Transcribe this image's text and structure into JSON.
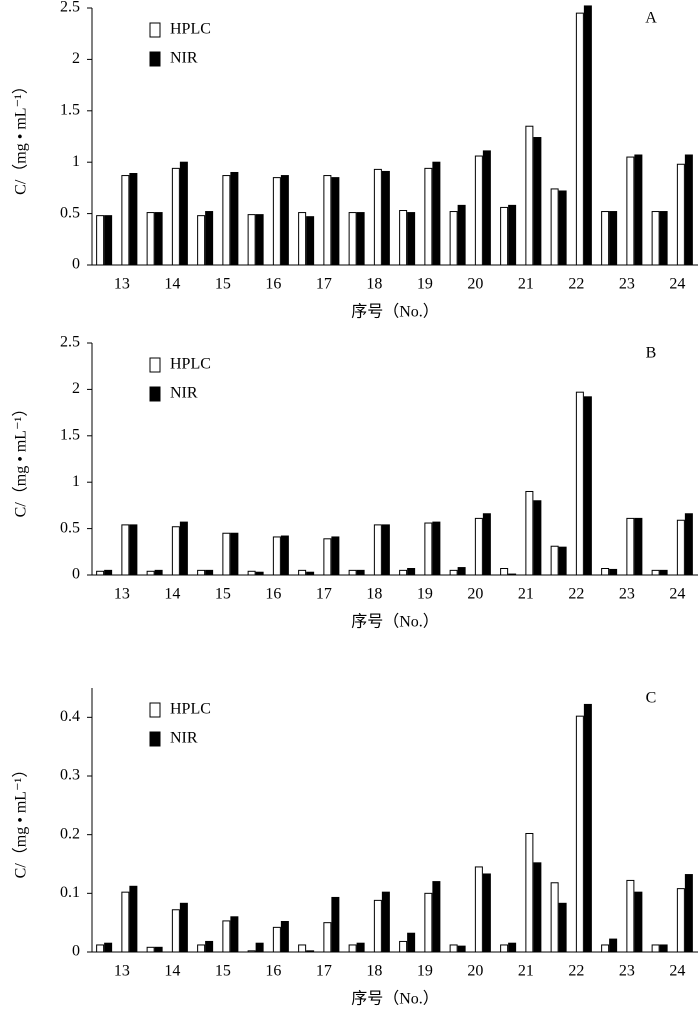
{
  "chart_data": [
    {
      "type": "bar",
      "annotation": "A",
      "xlabel": "序号（No.）",
      "ylabel": "C/（mg • mL⁻¹）",
      "categories": [
        null,
        "13",
        null,
        "14",
        null,
        "15",
        null,
        "16",
        null,
        "17",
        null,
        "18",
        null,
        "19",
        null,
        "20",
        null,
        "21",
        null,
        "22",
        null,
        "23",
        null,
        "24"
      ],
      "series": [
        {
          "name": "HPLC",
          "color": "#ffffff",
          "values": [
            0.48,
            0.87,
            0.51,
            0.94,
            0.48,
            0.87,
            0.49,
            0.85,
            0.51,
            0.87,
            0.51,
            0.93,
            0.53,
            0.94,
            0.52,
            1.06,
            0.56,
            1.35,
            0.74,
            2.45,
            0.52,
            1.05,
            0.52,
            0.98
          ]
        },
        {
          "name": "NIR",
          "color": "#000000",
          "values": [
            0.48,
            0.89,
            0.51,
            1.0,
            0.52,
            0.9,
            0.49,
            0.87,
            0.47,
            0.85,
            0.51,
            0.91,
            0.51,
            1.0,
            0.58,
            1.11,
            0.58,
            1.24,
            0.72,
            2.52,
            0.52,
            1.07,
            0.52,
            1.07
          ]
        }
      ],
      "ylim": [
        0,
        2.5
      ],
      "yticks": [
        0,
        0.5,
        1,
        1.5,
        2,
        2.5
      ]
    },
    {
      "type": "bar",
      "annotation": "B",
      "xlabel": "序号（No.）",
      "ylabel": "C/（mg • mL⁻¹）",
      "categories": [
        null,
        "13",
        null,
        "14",
        null,
        "15",
        null,
        "16",
        null,
        "17",
        null,
        "18",
        null,
        "19",
        null,
        "20",
        null,
        "21",
        null,
        "22",
        null,
        "23",
        null,
        "24"
      ],
      "series": [
        {
          "name": "HPLC",
          "color": "#ffffff",
          "values": [
            0.04,
            0.54,
            0.04,
            0.52,
            0.05,
            0.45,
            0.04,
            0.41,
            0.05,
            0.39,
            0.05,
            0.54,
            0.05,
            0.56,
            0.05,
            0.61,
            0.07,
            0.9,
            0.31,
            1.97,
            0.07,
            0.61,
            0.05,
            0.59
          ]
        },
        {
          "name": "NIR",
          "color": "#000000",
          "values": [
            0.05,
            0.54,
            0.05,
            0.57,
            0.05,
            0.45,
            0.03,
            0.42,
            0.03,
            0.41,
            0.05,
            0.54,
            0.07,
            0.57,
            0.08,
            0.66,
            0.01,
            0.8,
            0.3,
            1.92,
            0.06,
            0.61,
            0.05,
            0.66
          ]
        }
      ],
      "ylim": [
        0,
        2.5
      ],
      "yticks": [
        0,
        0.5,
        1,
        1.5,
        2,
        2.5
      ]
    },
    {
      "type": "bar",
      "annotation": "C",
      "xlabel": "序号（No.）",
      "ylabel": "C/（mg • mL⁻¹）",
      "categories": [
        null,
        "13",
        null,
        "14",
        null,
        "15",
        null,
        "16",
        null,
        "17",
        null,
        "18",
        null,
        "19",
        null,
        "20",
        null,
        "21",
        null,
        "22",
        null,
        "23",
        null,
        "24"
      ],
      "series": [
        {
          "name": "HPLC",
          "color": "#ffffff",
          "values": [
            0.012,
            0.102,
            0.008,
            0.072,
            0.012,
            0.053,
            0.002,
            0.042,
            0.012,
            0.05,
            0.012,
            0.088,
            0.018,
            0.1,
            0.012,
            0.145,
            0.012,
            0.202,
            0.118,
            0.402,
            0.012,
            0.122,
            0.012,
            0.108
          ]
        },
        {
          "name": "NIR",
          "color": "#000000",
          "values": [
            0.015,
            0.112,
            0.008,
            0.083,
            0.018,
            0.06,
            0.015,
            0.052,
            0.002,
            0.093,
            0.015,
            0.102,
            0.032,
            0.12,
            0.01,
            0.133,
            0.015,
            0.152,
            0.083,
            0.422,
            0.022,
            0.102,
            0.012,
            0.132
          ]
        }
      ],
      "ylim": [
        0,
        0.45
      ],
      "yticks": [
        0,
        0.1,
        0.2,
        0.3,
        0.4
      ]
    }
  ]
}
